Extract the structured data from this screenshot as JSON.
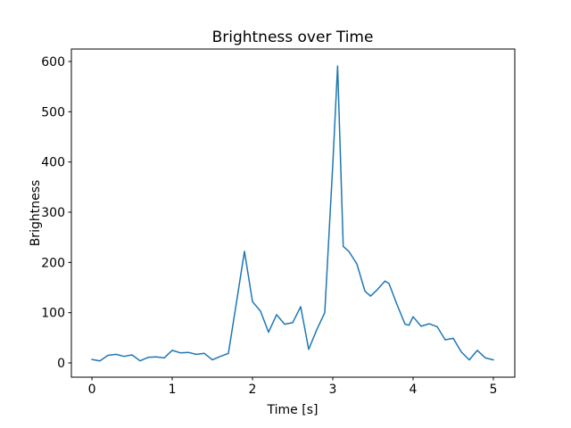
{
  "figure": {
    "background": "#ffffff",
    "text_color": "#000000"
  },
  "chart_data": {
    "type": "line",
    "title": "Brightness over Time",
    "xlabel": "Time [s]",
    "ylabel": "Brightness",
    "xlim": [
      -0.256,
      5.267
    ],
    "ylim": [
      -28.4,
      624.8
    ],
    "xticks": [
      0,
      1,
      2,
      3,
      4,
      5
    ],
    "yticks": [
      0,
      100,
      200,
      300,
      400,
      500,
      600
    ],
    "grid": false,
    "legend_position": "none",
    "line_color": "#1f77b4",
    "line_width": 1.5,
    "series": [
      {
        "name": "Brightness",
        "x": [
          0.0,
          0.1,
          0.2,
          0.3,
          0.4,
          0.5,
          0.6,
          0.7,
          0.8,
          0.9,
          1.0,
          1.1,
          1.2,
          1.3,
          1.4,
          1.5,
          1.6,
          1.7,
          1.8,
          1.9,
          2.0,
          2.1,
          2.2,
          2.3,
          2.4,
          2.5,
          2.6,
          2.7,
          2.8,
          2.9,
          3.0,
          3.06,
          3.13,
          3.2,
          3.3,
          3.4,
          3.47,
          3.55,
          3.65,
          3.7,
          3.8,
          3.9,
          3.95,
          4.0,
          4.1,
          4.2,
          4.3,
          4.4,
          4.5,
          4.6,
          4.7,
          4.8,
          4.9,
          5.0
        ],
        "y": [
          7,
          4,
          15,
          17,
          13,
          16,
          4,
          11,
          12,
          10,
          25,
          20,
          21,
          17,
          19,
          6,
          13,
          19,
          120,
          222,
          122,
          103,
          61,
          96,
          77,
          80,
          112,
          27,
          66,
          100,
          395,
          591,
          232,
          222,
          197,
          143,
          133,
          145,
          163,
          158,
          116,
          77,
          75,
          92,
          73,
          78,
          72,
          46,
          49,
          22,
          6,
          25,
          10,
          6
        ]
      }
    ]
  }
}
